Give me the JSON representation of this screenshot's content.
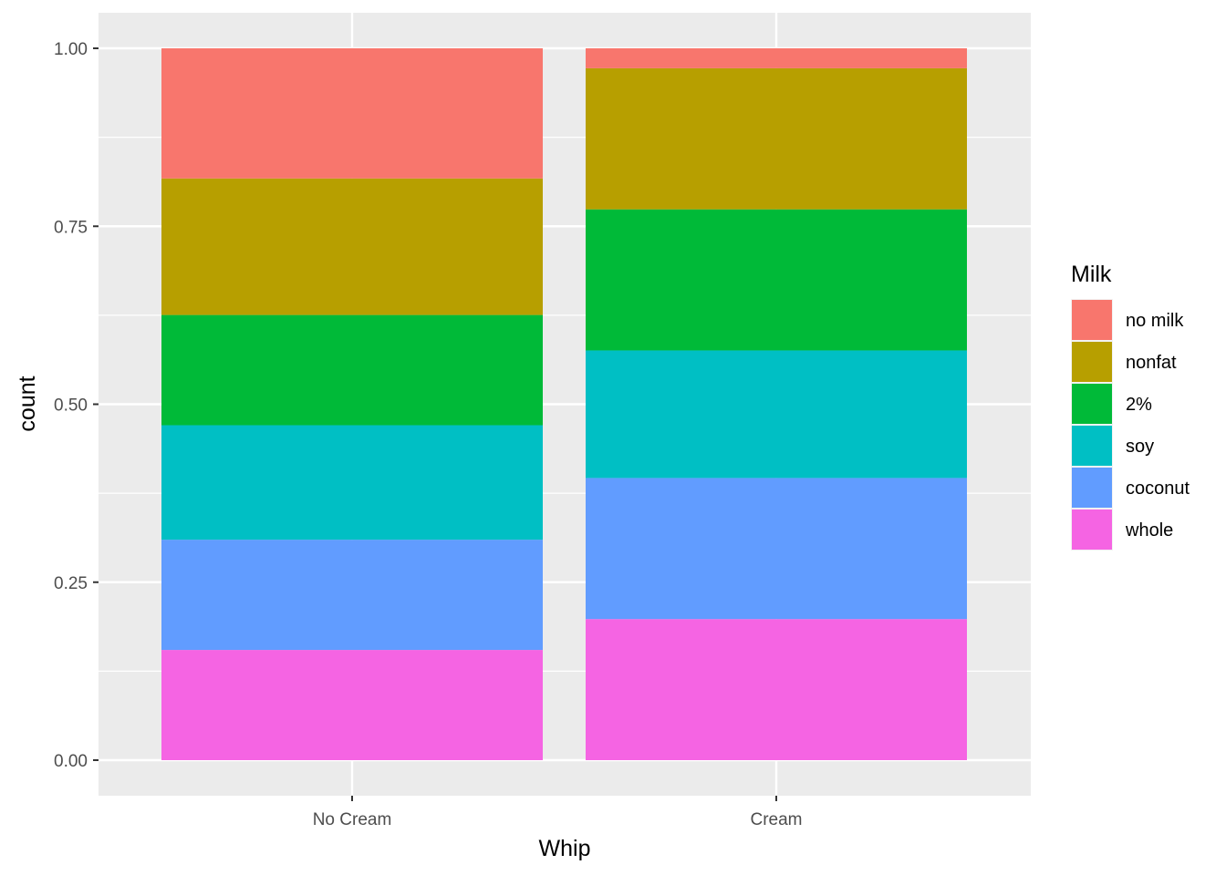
{
  "chart_data": {
    "type": "bar",
    "stacked": true,
    "position": "fill",
    "xlabel": "Whip",
    "ylabel": "count",
    "ylim": [
      0,
      1
    ],
    "yticks": [
      "0.00",
      "0.25",
      "0.50",
      "0.75",
      "1.00"
    ],
    "ytick_values": [
      0,
      0.25,
      0.5,
      0.75,
      1.0
    ],
    "categories": [
      "No Cream",
      "Cream"
    ],
    "grid": true,
    "panel_background": "#EBEBEB",
    "legend": {
      "title": "Milk",
      "placement": "right"
    },
    "series": [
      {
        "name": "no milk",
        "color": "#F8766D",
        "values": [
          0.183,
          0.028
        ]
      },
      {
        "name": "nonfat",
        "color": "#B79F00",
        "values": [
          0.192,
          0.198
        ]
      },
      {
        "name": "2%",
        "color": "#00BA38",
        "values": [
          0.155,
          0.198
        ]
      },
      {
        "name": "soy",
        "color": "#00BFC4",
        "values": [
          0.161,
          0.179
        ]
      },
      {
        "name": "coconut",
        "color": "#619CFF",
        "values": [
          0.155,
          0.198
        ]
      },
      {
        "name": "whole",
        "color": "#F564E3",
        "values": [
          0.155,
          0.198
        ]
      }
    ]
  }
}
